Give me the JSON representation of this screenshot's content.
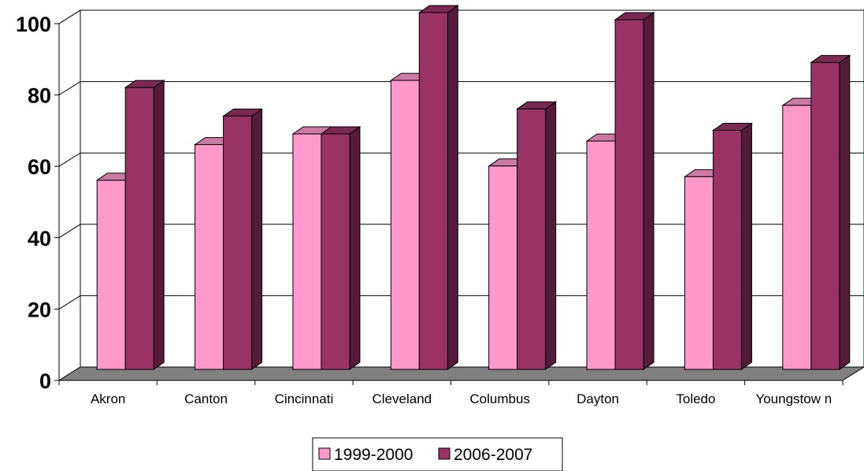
{
  "chart_data": {
    "type": "bar",
    "categories": [
      "Akron",
      "Canton",
      "Cincinnati",
      "Cleveland",
      "Columbus",
      "Dayton",
      "Toledo",
      "Youngstow n"
    ],
    "series": [
      {
        "name": "1999-2000",
        "values": [
          53,
          63,
          66,
          81,
          57,
          64,
          54,
          74
        ]
      },
      {
        "name": "2006-2007",
        "values": [
          79,
          71,
          66,
          100,
          73,
          98,
          67,
          86
        ]
      }
    ],
    "ylim": [
      0,
      100
    ],
    "yticks": [
      "0",
      "20",
      "40",
      "60",
      "80",
      "100"
    ],
    "grid": true,
    "legend_position": "bottom",
    "three_d": true
  },
  "colors": {
    "series_1": "#ff99cc",
    "series_2": "#993366",
    "floor": "#808080"
  }
}
